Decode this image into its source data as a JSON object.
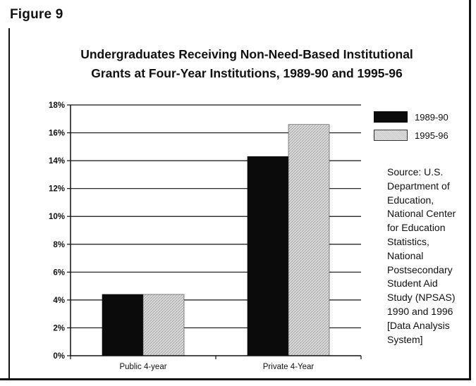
{
  "figure_label": "Figure 9",
  "chart_data": {
    "type": "bar",
    "title_line1": "Undergraduates Receiving Non-Need-Based Institutional",
    "title_line2": "Grants at Four-Year Institutions, 1989-90 and 1995-96",
    "categories": [
      "Public 4-year",
      "Private 4-Year"
    ],
    "series": [
      {
        "name": "1989-90",
        "values": [
          4.4,
          14.3
        ],
        "color": "#0b0b0b"
      },
      {
        "name": "1995-96",
        "values": [
          4.4,
          16.6
        ],
        "color": "#d0d0d0"
      }
    ],
    "yticks": [
      "0%",
      "2%",
      "4%",
      "6%",
      "8%",
      "10%",
      "12%",
      "14%",
      "16%",
      "18%"
    ],
    "ylim": [
      0,
      18
    ],
    "xlabel": "",
    "ylabel": "",
    "grid": true,
    "legend_position": "top-right"
  },
  "source_lines": [
    "Source: U.S.",
    "Department of",
    "Education,",
    "National Center",
    "for Education",
    "Statistics,",
    "National",
    "Postsecondary",
    "Student Aid",
    "Study (NPSAS)",
    "1990 and 1996",
    "[Data Analysis",
    "System]"
  ]
}
